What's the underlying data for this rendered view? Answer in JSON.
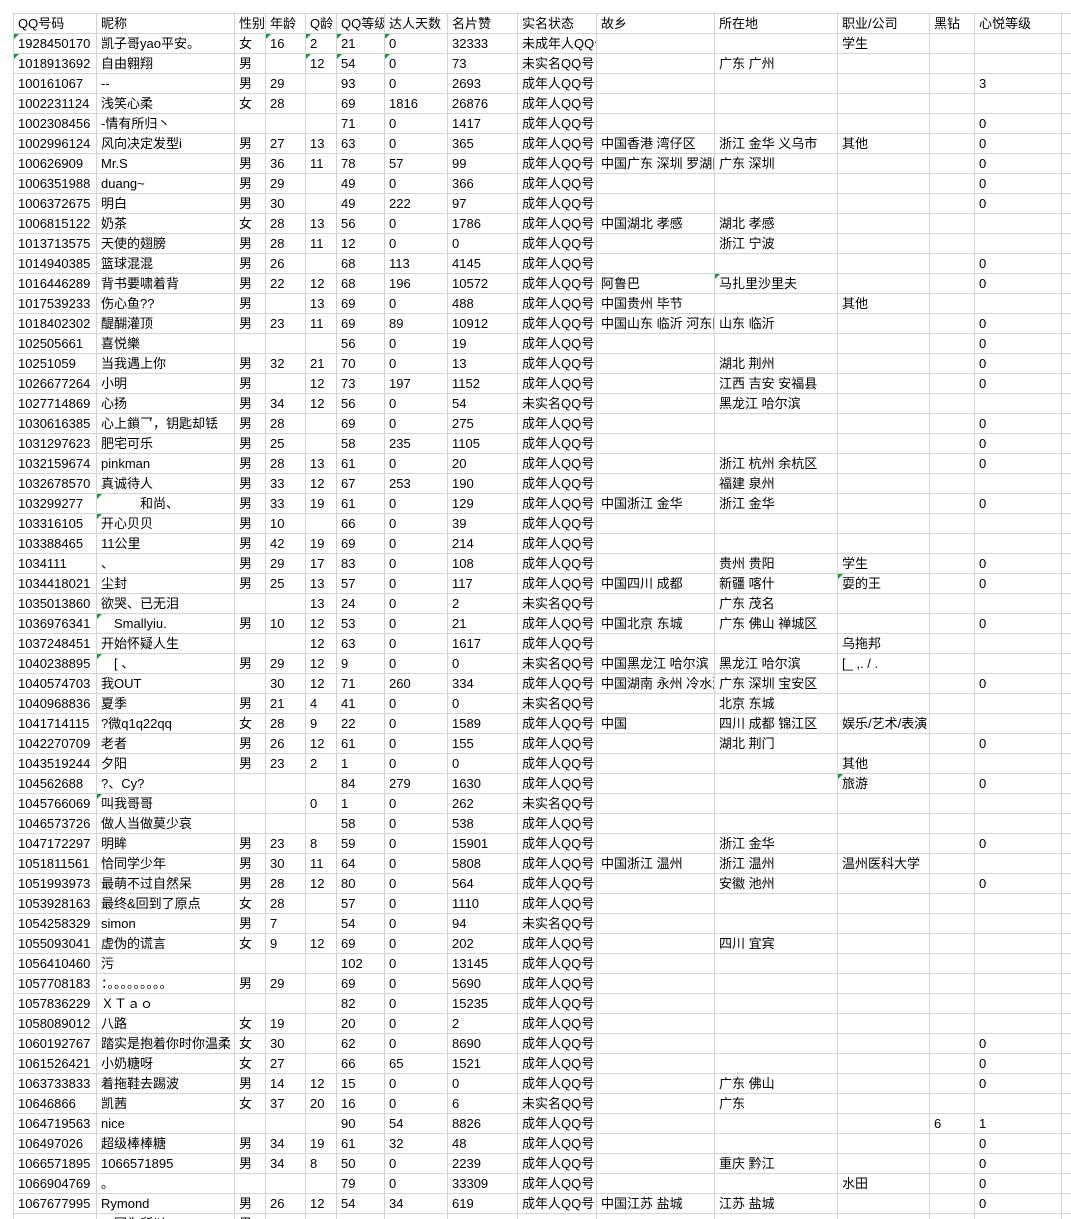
{
  "grid": {
    "headers": [
      "QQ号码",
      "昵称",
      "性别",
      "年龄",
      "Q龄",
      "QQ等级",
      "达人天数",
      "名片赞",
      "实名状态",
      "故乡",
      "所在地",
      "职业/公司",
      "黑钻",
      "心悦等级"
    ],
    "rows": [
      [
        "1928450170",
        "凯子哥yao平安。",
        "女",
        "16",
        "2",
        "21",
        "0",
        "32333",
        "未成年人QQ号",
        "",
        "",
        "学生",
        "",
        ""
      ],
      [
        "1018913692",
        "自由翱翔",
        "男",
        "",
        "12",
        "54",
        "0",
        "73",
        "未实名QQ号",
        "",
        "广东 广州",
        "",
        "",
        ""
      ],
      [
        "100161067",
        "--",
        "男",
        "29",
        "",
        "93",
        "0",
        "2693",
        "成年人QQ号",
        "",
        "",
        "",
        "",
        "3"
      ],
      [
        "1002231124",
        "浅笑心柔",
        "女",
        "28",
        "",
        "69",
        "1816",
        "26876",
        "成年人QQ号",
        "",
        "",
        "",
        "",
        ""
      ],
      [
        "1002308456",
        "-情有所归丶",
        "",
        "",
        "",
        "71",
        "0",
        "1417",
        "成年人QQ号",
        "",
        "",
        "",
        "",
        "0"
      ],
      [
        "1002996124",
        "风向决定发型i",
        "男",
        "27",
        "13",
        "63",
        "0",
        "365",
        "成年人QQ号",
        "中国香港 湾仔区",
        "浙江 金华 义乌市",
        "其他",
        "",
        "0"
      ],
      [
        "100626909",
        "Mr.S",
        "男",
        "36",
        "11",
        "78",
        "57",
        "99",
        "成年人QQ号",
        "中国广东 深圳 罗湖区",
        "广东 深圳",
        "",
        "",
        "0"
      ],
      [
        "1006351988",
        "duang~",
        "男",
        "29",
        "",
        "49",
        "0",
        "366",
        "成年人QQ号",
        "",
        "",
        "",
        "",
        "0"
      ],
      [
        "1006372675",
        "明白",
        "男",
        "30",
        "",
        "49",
        "222",
        "97",
        "成年人QQ号",
        "",
        "",
        "",
        "",
        "0"
      ],
      [
        "1006815122",
        "奶茶",
        "女",
        "28",
        "13",
        "56",
        "0",
        "1786",
        "成年人QQ号",
        "中国湖北 孝感",
        "湖北 孝感",
        "",
        "",
        ""
      ],
      [
        "1013713575",
        "天使的翅膀",
        "男",
        "28",
        "11",
        "12",
        "0",
        "0",
        "成年人QQ号",
        "",
        "浙江 宁波",
        "",
        "",
        ""
      ],
      [
        "1014940385",
        "篮球混混",
        "男",
        "26",
        "",
        "68",
        "113",
        "4145",
        "成年人QQ号",
        "",
        "",
        "",
        "",
        "0"
      ],
      [
        "1016446289",
        "背书要啸着背",
        "男",
        "22",
        "12",
        "68",
        "196",
        "10572",
        "成年人QQ号",
        "阿鲁巴",
        "马扎里沙里夫",
        "",
        "",
        "0"
      ],
      [
        "1017539233",
        "伤心鱼??",
        "男",
        "",
        "13",
        "69",
        "0",
        "488",
        "成年人QQ号",
        "中国贵州 毕节",
        "",
        "其他",
        "",
        ""
      ],
      [
        "1018402302",
        "醍醐灌顶",
        "男",
        "23",
        "11",
        "69",
        "89",
        "10912",
        "成年人QQ号",
        "中国山东 临沂 河东区",
        "山东 临沂",
        "",
        "",
        "0"
      ],
      [
        "102505661",
        "喜悦樂",
        "",
        "",
        "",
        "56",
        "0",
        "19",
        "成年人QQ号",
        "",
        "",
        "",
        "",
        "0"
      ],
      [
        "10251059",
        "当我遇上你",
        "男",
        "32",
        "21",
        "70",
        "0",
        "13",
        "成年人QQ号",
        "",
        "湖北 荆州",
        "",
        "",
        "0"
      ],
      [
        "1026677264",
        "小明",
        "男",
        "",
        "12",
        "73",
        "197",
        "1152",
        "成年人QQ号",
        "",
        "江西 吉安 安福县",
        "",
        "",
        "0"
      ],
      [
        "1027714869",
        "心扬",
        "男",
        "34",
        "12",
        "56",
        "0",
        "54",
        "未实名QQ号",
        "",
        "黑龙江 哈尔滨",
        "",
        "",
        ""
      ],
      [
        "1030616385",
        "心上鎖乛，钥匙却铥",
        "男",
        "28",
        "",
        "69",
        "0",
        "275",
        "成年人QQ号",
        "",
        "",
        "",
        "",
        "0"
      ],
      [
        "1031297623",
        "肥宅可乐",
        "男",
        "25",
        "",
        "58",
        "235",
        "1105",
        "成年人QQ号",
        "",
        "",
        "",
        "",
        "0"
      ],
      [
        "1032159674",
        "pinkman",
        "男",
        "28",
        "13",
        "61",
        "0",
        "20",
        "成年人QQ号",
        "",
        "浙江 杭州 余杭区",
        "",
        "",
        "0"
      ],
      [
        "1032678570",
        "真诚待人",
        "男",
        "33",
        "12",
        "67",
        "253",
        "190",
        "成年人QQ号",
        "",
        "福建 泉州",
        "",
        "",
        ""
      ],
      [
        "103299277",
        "　　　和尚、",
        "男",
        "33",
        "19",
        "61",
        "0",
        "129",
        "成年人QQ号",
        "中国浙江 金华",
        "浙江 金华",
        "",
        "",
        "0"
      ],
      [
        "103316105",
        "开心贝贝",
        "男",
        "10",
        "",
        "66",
        "0",
        "39",
        "成年人QQ号",
        "",
        "",
        "",
        "",
        ""
      ],
      [
        "103388465",
        "11公里",
        "男",
        "42",
        "19",
        "69",
        "0",
        "214",
        "成年人QQ号",
        "",
        "",
        "",
        "",
        ""
      ],
      [
        "1034111",
        "、",
        "男",
        "29",
        "17",
        "83",
        "0",
        "108",
        "成年人QQ号",
        "",
        "贵州 贵阳",
        "学生",
        "",
        "0"
      ],
      [
        "1034418021",
        "尘封",
        "男",
        "25",
        "13",
        "57",
        "0",
        "117",
        "成年人QQ号",
        "中国四川 成都",
        "新疆 喀什",
        "耍的王",
        "",
        "0"
      ],
      [
        "1035013860",
        "欲哭、已无泪",
        "",
        "",
        "13",
        "24",
        "0",
        "2",
        "未实名QQ号",
        "",
        "广东 茂名",
        "",
        "",
        ""
      ],
      [
        "1036976341",
        "　Smallyiu.",
        "男",
        "10",
        "12",
        "53",
        "0",
        "21",
        "成年人QQ号",
        "中国北京 东城",
        "广东 佛山 禅城区",
        "",
        "",
        "0"
      ],
      [
        "1037248451",
        "开始怀疑人生",
        "",
        "",
        "12",
        "63",
        "0",
        "1617",
        "成年人QQ号",
        "",
        "",
        "乌拖邦",
        "",
        ""
      ],
      [
        "1040238895",
        "　[ 、",
        "男",
        "29",
        "12",
        "9",
        "0",
        "0",
        "未实名QQ号",
        "中国黑龙江 哈尔滨",
        "黑龙江 哈尔滨",
        "[_ ,. / .",
        "",
        ""
      ],
      [
        "1040574703",
        "我OUT",
        "",
        "30",
        "12",
        "71",
        "260",
        "334",
        "成年人QQ号",
        "中国湖南 永州 冷水滩区",
        "广东 深圳 宝安区",
        "",
        "",
        "0"
      ],
      [
        "1040968836",
        "夏季",
        "男",
        "21",
        "4",
        "41",
        "0",
        "0",
        "未实名QQ号",
        "",
        "北京 东城",
        "",
        "",
        ""
      ],
      [
        "1041714115",
        "?微q1q22qq",
        "女",
        "28",
        "9",
        "22",
        "0",
        "1589",
        "成年人QQ号",
        "中国",
        "四川 成都 锦江区",
        "娱乐/艺术/表演",
        "",
        ""
      ],
      [
        "1042270709",
        "老者",
        "男",
        "26",
        "12",
        "61",
        "0",
        "155",
        "成年人QQ号",
        "",
        "湖北 荆门",
        "",
        "",
        "0"
      ],
      [
        "1043519244",
        "夕阳",
        "男",
        "23",
        "2",
        "1",
        "0",
        "0",
        "成年人QQ号",
        "",
        "",
        "其他",
        "",
        ""
      ],
      [
        "104562688",
        "?、Cy?",
        "",
        "",
        "",
        "84",
        "279",
        "1630",
        "成年人QQ号",
        "",
        "",
        "旅游",
        "",
        "0"
      ],
      [
        "1045766069",
        "叫我哥哥",
        "",
        "",
        "0",
        "1",
        "0",
        "262",
        "未实名QQ号",
        "",
        "",
        "",
        "",
        ""
      ],
      [
        "1046573726",
        "做人当做莫少哀",
        "",
        "",
        "",
        "58",
        "0",
        "538",
        "成年人QQ号",
        "",
        "",
        "",
        "",
        ""
      ],
      [
        "1047172297",
        "明眸",
        "男",
        "23",
        "8",
        "59",
        "0",
        "15901",
        "成年人QQ号",
        "",
        "浙江 金华",
        "",
        "",
        "0"
      ],
      [
        "1051811561",
        "恰同学少年",
        "男",
        "30",
        "11",
        "64",
        "0",
        "5808",
        "成年人QQ号",
        "中国浙江 温州",
        "浙江 温州",
        "温州医科大学",
        "",
        ""
      ],
      [
        "1051993973",
        "最萌不过自然呆",
        "男",
        "28",
        "12",
        "80",
        "0",
        "564",
        "成年人QQ号",
        "",
        "安徽 池州",
        "",
        "",
        "0"
      ],
      [
        "1053928163",
        "最终&回到了原点",
        "女",
        "28",
        "",
        "57",
        "0",
        "1110",
        "成年人QQ号",
        "",
        "",
        "",
        "",
        ""
      ],
      [
        "1054258329",
        "simon",
        "男",
        "7",
        "",
        "54",
        "0",
        "94",
        "未实名QQ号",
        "",
        "",
        "",
        "",
        ""
      ],
      [
        "1055093041",
        "虚伪的谎言",
        "女",
        "9",
        "12",
        "69",
        "0",
        "202",
        "成年人QQ号",
        "",
        "四川 宜宾",
        "",
        "",
        ""
      ],
      [
        "1056410460",
        "污",
        "",
        "",
        "",
        "102",
        "0",
        "13145",
        "成年人QQ号",
        "",
        "",
        "",
        "",
        ""
      ],
      [
        "1057708183",
        "：。。。。。。。。。",
        "男",
        "29",
        "",
        "69",
        "0",
        "5690",
        "成年人QQ号",
        "",
        "",
        "",
        "",
        ""
      ],
      [
        "1057836229",
        "ＸＴａｏ",
        "",
        "",
        "",
        "82",
        "0",
        "15235",
        "成年人QQ号",
        "",
        "",
        "",
        "",
        ""
      ],
      [
        "1058089012",
        "八路",
        "女",
        "19",
        "",
        "20",
        "0",
        "2",
        "成年人QQ号",
        "",
        "",
        "",
        "",
        ""
      ],
      [
        "1060192767",
        "踏实是抱着你时你温柔",
        "女",
        "30",
        "",
        "62",
        "0",
        "8690",
        "成年人QQ号",
        "",
        "",
        "",
        "",
        "0"
      ],
      [
        "1061526421",
        "小奶糖呀",
        "女",
        "27",
        "",
        "66",
        "65",
        "1521",
        "成年人QQ号",
        "",
        "",
        "",
        "",
        "0"
      ],
      [
        "1063733833",
        "着拖鞋去踢波",
        "男",
        "14",
        "12",
        "15",
        "0",
        "0",
        "成年人QQ号",
        "",
        "广东 佛山",
        "",
        "",
        "0"
      ],
      [
        "10646866",
        "凯茜",
        "女",
        "37",
        "20",
        "16",
        "0",
        "6",
        "未实名QQ号",
        "",
        "广东",
        "",
        "",
        ""
      ],
      [
        "1064719563",
        "nice",
        "",
        "",
        "",
        "90",
        "54",
        "8826",
        "成年人QQ号",
        "",
        "",
        "",
        "6",
        "1"
      ],
      [
        "106497026",
        "超级棒棒糖",
        "男",
        "34",
        "19",
        "61",
        "32",
        "48",
        "成年人QQ号",
        "",
        "",
        "",
        "",
        "0"
      ],
      [
        "1066571895",
        "1066571895",
        "男",
        "34",
        "8",
        "50",
        "0",
        "2239",
        "成年人QQ号",
        "",
        "重庆 黔江",
        "",
        "",
        "0"
      ],
      [
        "1066904769",
        "。",
        "",
        "",
        "",
        "79",
        "0",
        "33309",
        "成年人QQ号",
        "",
        "",
        "水田",
        "",
        "0"
      ],
      [
        "1067677995",
        "Rymond",
        "男",
        "26",
        "12",
        "54",
        "34",
        "619",
        "成年人QQ号",
        "中国江苏 盐城",
        "江苏 盐城",
        "",
        "",
        "0"
      ]
    ],
    "partial_row": [
      "",
      "、因为所以",
      "男",
      "",
      "",
      "",
      "",
      "",
      "",
      "",
      "",
      "",
      "",
      ""
    ],
    "error_flags": [
      [
        0,
        0
      ],
      [
        0,
        3
      ],
      [
        0,
        4
      ],
      [
        0,
        5
      ],
      [
        0,
        6
      ],
      [
        1,
        0
      ],
      [
        1,
        4
      ],
      [
        1,
        5
      ],
      [
        1,
        6
      ],
      [
        12,
        10
      ],
      [
        23,
        1
      ],
      [
        24,
        1
      ],
      [
        27,
        11
      ],
      [
        29,
        1
      ],
      [
        31,
        1
      ],
      [
        37,
        11
      ],
      [
        38,
        1
      ]
    ],
    "colors": {
      "background": "#ffffff",
      "gridline": "#d4d4d4",
      "text": "#000000",
      "error_indicator": "#169c2e"
    }
  }
}
